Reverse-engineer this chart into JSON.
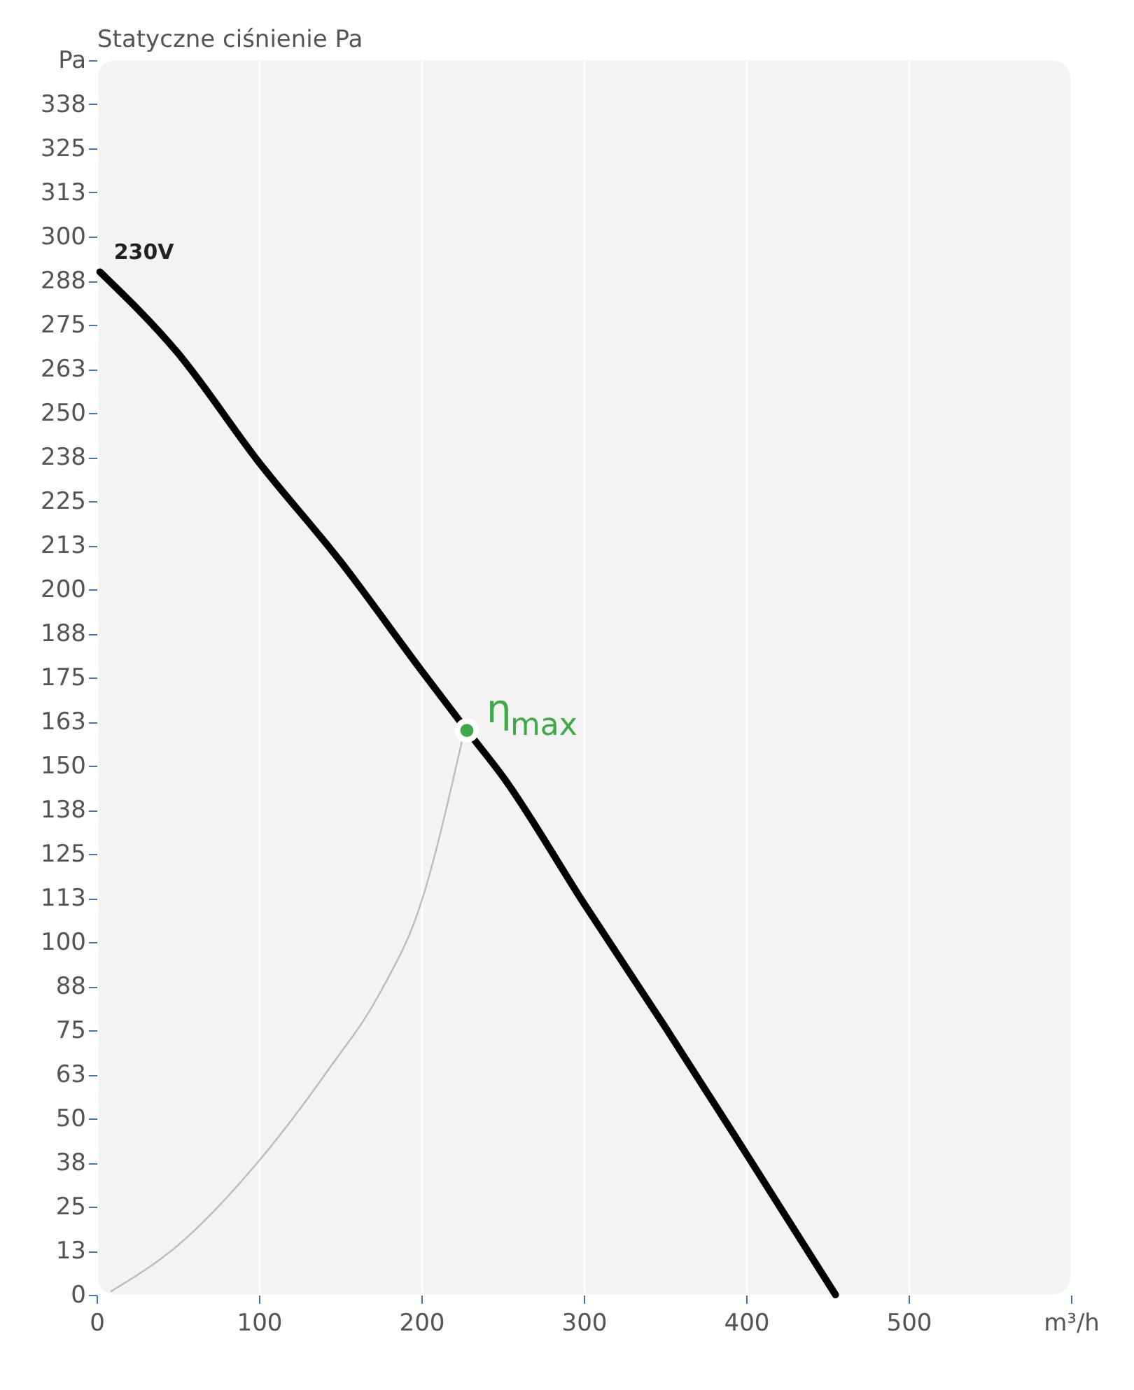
{
  "chart_data": {
    "type": "line",
    "ylabel": "Statyczne ciśnienie Pa",
    "xlim": [
      0,
      600
    ],
    "xticks": [
      0,
      100,
      200,
      300,
      400,
      500,
      {
        "value": 600,
        "label": "m³/h"
      }
    ],
    "ylim": [
      0,
      350
    ],
    "yticks": [
      0,
      {
        "value": 12.5,
        "label": "13"
      },
      25,
      {
        "value": 37.5,
        "label": "38"
      },
      50,
      {
        "value": 62.5,
        "label": "63"
      },
      75,
      {
        "value": 87.5,
        "label": "88"
      },
      100,
      {
        "value": 112.5,
        "label": "113"
      },
      125,
      {
        "value": 137.5,
        "label": "138"
      },
      150,
      {
        "value": 162.5,
        "label": "163"
      },
      175,
      {
        "value": 187.5,
        "label": "188"
      },
      200,
      {
        "value": 212.5,
        "label": "213"
      },
      225,
      {
        "value": 237.5,
        "label": "238"
      },
      250,
      {
        "value": 262.5,
        "label": "263"
      },
      275,
      {
        "value": 287.5,
        "label": "288"
      },
      300,
      {
        "value": 312.5,
        "label": "313"
      },
      325,
      {
        "value": 337.5,
        "label": "338"
      },
      {
        "value": 350,
        "label": "Pa"
      }
    ],
    "grid": "x",
    "legend": false,
    "line_style": "solid",
    "series": [
      {
        "name": "230V",
        "color": "#000000",
        "x": [
          2,
          50,
          100,
          150,
          200,
          228,
          250,
          300,
          350,
          400,
          455
        ],
        "values": [
          290,
          267,
          236,
          208,
          177,
          160,
          147,
          111,
          76,
          40,
          0
        ]
      },
      {
        "color": "#bbbbbb",
        "x": [
          9,
          50,
          100,
          143,
          175,
          199,
          225
        ],
        "values": [
          1,
          14,
          38,
          64,
          86,
          110,
          157
        ]
      },
      {
        "type": "scatter",
        "color": "#3daa46",
        "marker": "circle",
        "x": [
          228
        ],
        "values": [
          160
        ]
      }
    ],
    "annotations": [
      {
        "text": "η$_{max}$",
        "x": 228,
        "y": 160
      }
    ]
  }
}
